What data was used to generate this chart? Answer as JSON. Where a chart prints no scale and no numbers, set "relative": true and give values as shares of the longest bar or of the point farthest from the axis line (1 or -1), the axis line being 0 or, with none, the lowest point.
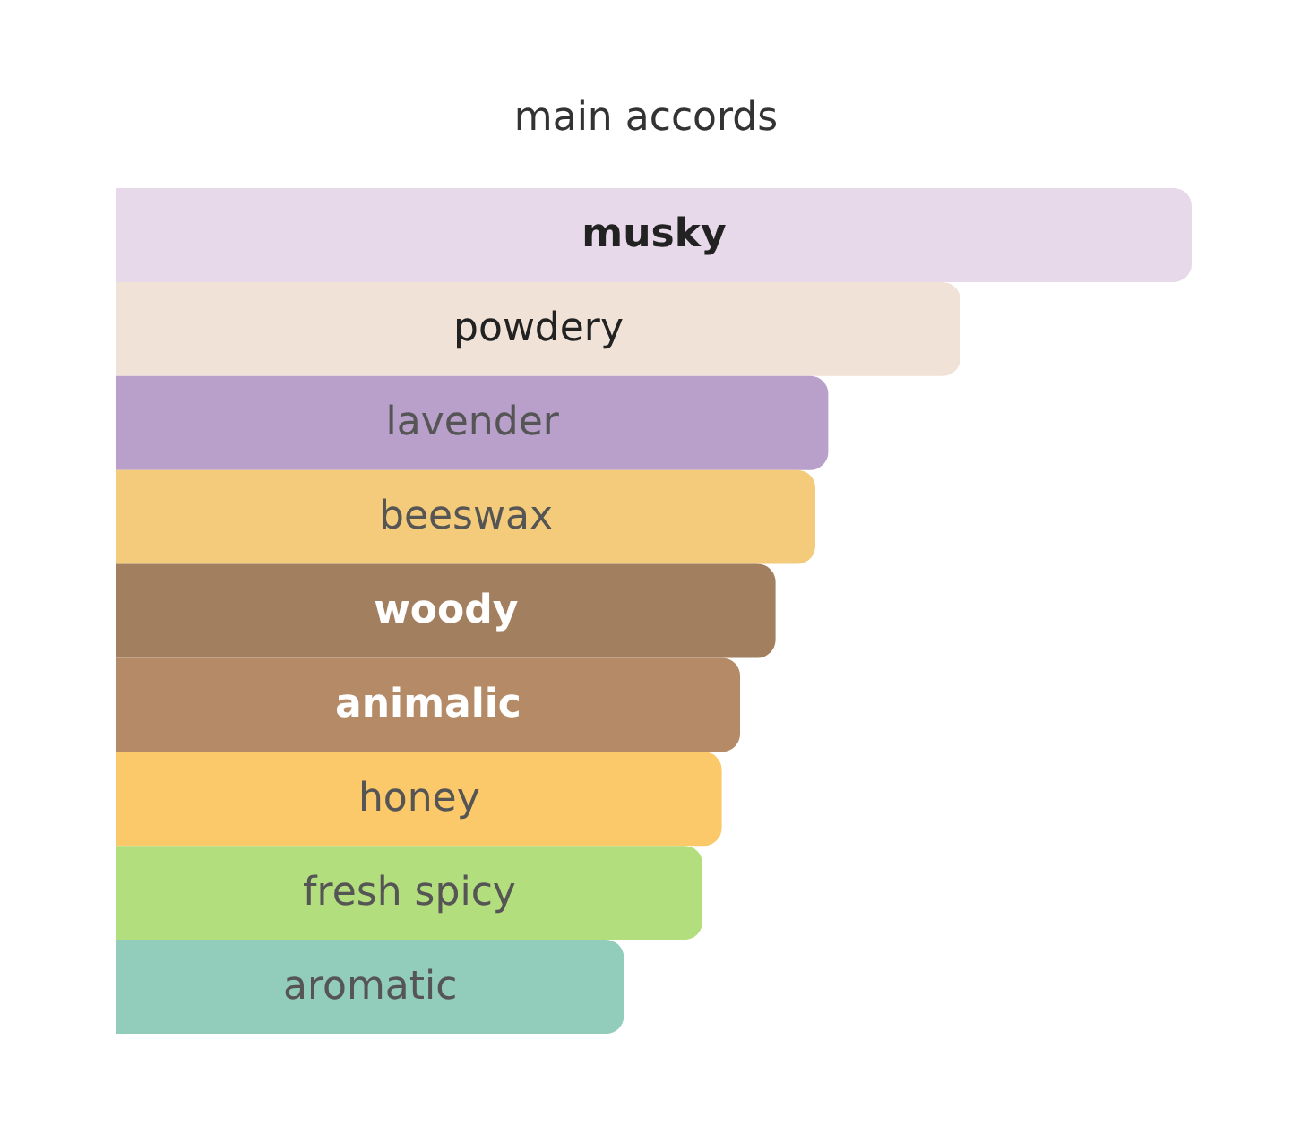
{
  "chart_data": {
    "type": "bar",
    "orientation": "horizontal",
    "relative": true,
    "title": "main accords",
    "categories": [
      "musky",
      "powdery",
      "lavender",
      "beeswax",
      "woody",
      "animalic",
      "honey",
      "fresh spicy",
      "aromatic"
    ],
    "values": [
      1,
      0.785,
      0.662,
      0.65,
      0.613,
      0.58,
      0.563,
      0.545,
      0.472
    ],
    "colors": [
      "#e8d9ea",
      "#f0e2d7",
      "#b8a0cb",
      "#f4cb7a",
      "#a27f5f",
      "#b48a67",
      "#fbc96a",
      "#b3de7e",
      "#92ccbb"
    ]
  }
}
